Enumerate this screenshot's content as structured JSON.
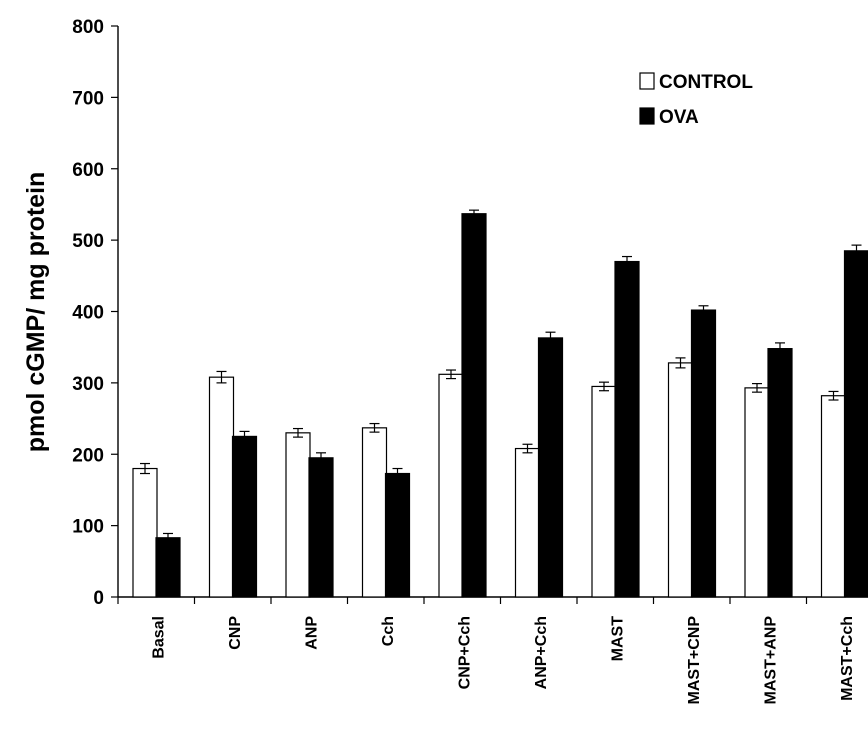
{
  "chart_data": {
    "type": "bar",
    "ylabel": "pmol cGMP/ mg protein",
    "xlabel": "",
    "ylim": [
      0,
      800
    ],
    "yticks": [
      0,
      100,
      200,
      300,
      400,
      500,
      600,
      700,
      800
    ],
    "grid": false,
    "legend_position": "top-right",
    "categories": [
      "Basal",
      "CNP",
      "ANP",
      "Cch",
      "CNP+Cch",
      "ANP+Cch",
      "MAST",
      "MAST+CNP",
      "MAST+ANP",
      "MAST+Cch"
    ],
    "series": [
      {
        "name": "CONTROL",
        "color": "#ffffff",
        "values": [
          180,
          308,
          230,
          237,
          312,
          208,
          295,
          328,
          293,
          282
        ],
        "errors": [
          7,
          8,
          6,
          6,
          6,
          6,
          6,
          7,
          6,
          6
        ]
      },
      {
        "name": "OVA",
        "color": "#000000",
        "values": [
          83,
          225,
          195,
          173,
          537,
          363,
          470,
          402,
          348,
          485
        ],
        "errors": [
          6,
          7,
          7,
          7,
          5,
          8,
          7,
          6,
          8,
          8
        ]
      }
    ]
  }
}
